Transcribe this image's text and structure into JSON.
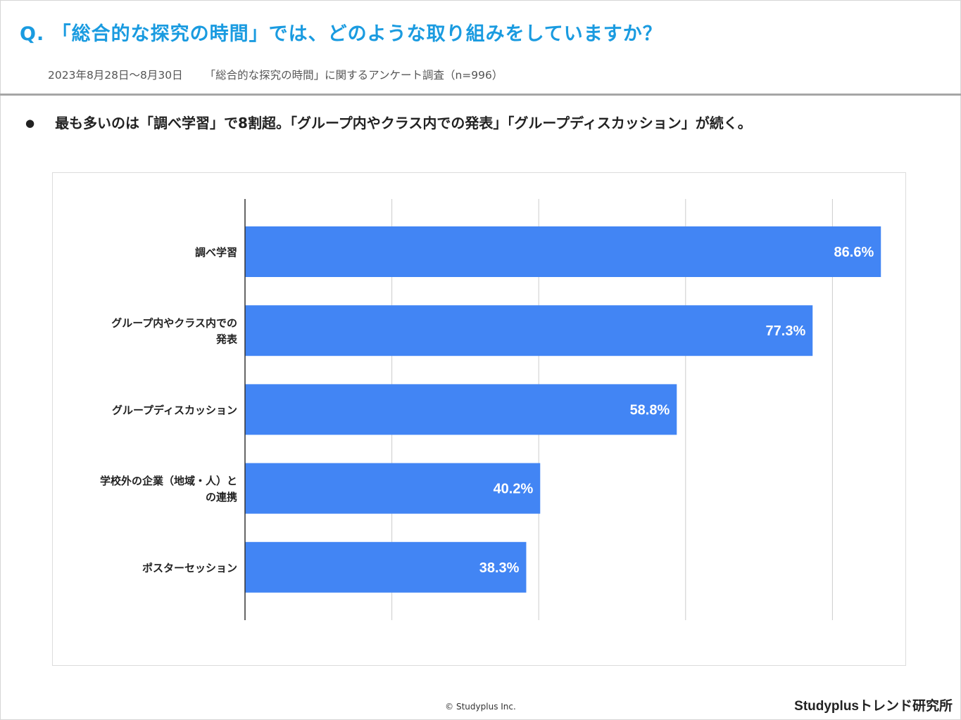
{
  "header": {
    "title": "Q. 「総合的な探究の時間」では、どのような取り組みをしていますか？",
    "date_range": "2023年8月28日～8月30日",
    "survey_name": "「総合的な探究の時間」に関するアンケート調査（n=996）"
  },
  "summary": {
    "bullet": "●",
    "text": "最も多いのは「調べ学習」で8割超。「グループ内やクラス内での発表」「グループディスカッション」が続く。"
  },
  "chart_data": {
    "type": "bar",
    "orientation": "horizontal",
    "title": "",
    "xlabel": "",
    "ylabel": "",
    "xlim": [
      0,
      100
    ],
    "grid": true,
    "bar_color": "#4285f4",
    "label_color": "#ffffff",
    "categories": [
      [
        "調べ学習"
      ],
      [
        "グループ内やクラス内での",
        "発表"
      ],
      [
        "グループディスカッション"
      ],
      [
        "学校外の企業（地域・人）と",
        "の連携"
      ],
      [
        "ポスターセッション"
      ]
    ],
    "values": [
      86.6,
      77.3,
      58.8,
      40.2,
      38.3
    ],
    "value_labels": [
      "86.6%",
      "77.3%",
      "58.8%",
      "40.2%",
      "38.3%"
    ]
  },
  "footer": {
    "copyright": "© Studyplus Inc.",
    "brand": "Studyplusトレンド研究所"
  }
}
